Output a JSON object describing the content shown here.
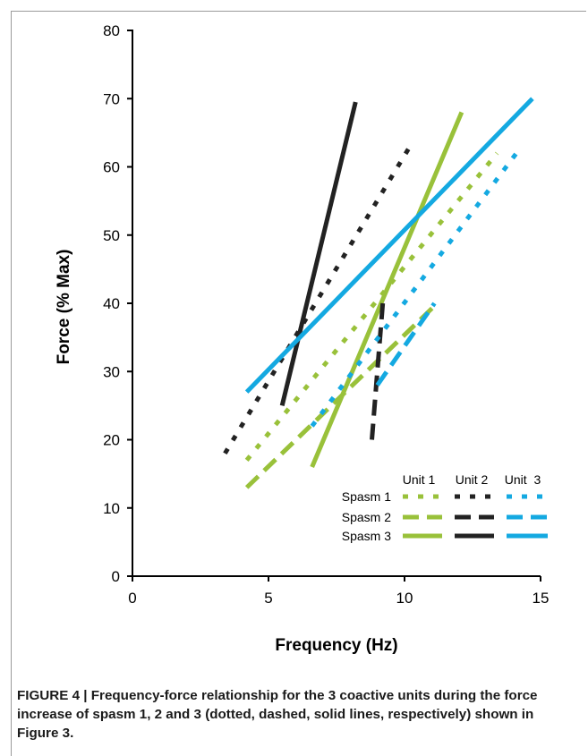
{
  "chart_data": {
    "type": "line",
    "xlabel": "Frequency (Hz)",
    "ylabel": "Force (% Max)",
    "xlim": [
      0,
      15
    ],
    "ylim": [
      0,
      80
    ],
    "xticks": [
      0,
      5,
      10,
      15
    ],
    "yticks": [
      0,
      10,
      20,
      30,
      40,
      50,
      60,
      70,
      80
    ],
    "grid": false,
    "legend": {
      "placement": "bottom-right",
      "column_headers": [
        "Unit 1",
        "Unit 2",
        "Unit  3"
      ],
      "row_labels": [
        "Spasm 1",
        "Spasm 2",
        "Spasm 3"
      ]
    },
    "series": [
      {
        "unit": "Unit 1",
        "spasm": "Spasm 1",
        "style": "dotted",
        "color": "#99c13a",
        "x": [
          4.2,
          13.4
        ],
        "y": [
          17.0,
          62.0
        ]
      },
      {
        "unit": "Unit 1",
        "spasm": "Spasm 2",
        "style": "dashed",
        "color": "#99c13a",
        "x": [
          4.2,
          11.2
        ],
        "y": [
          13.0,
          40.0
        ]
      },
      {
        "unit": "Unit 1",
        "spasm": "Spasm 3",
        "style": "solid",
        "color": "#99c13a",
        "x": [
          6.6,
          12.1
        ],
        "y": [
          16.0,
          68.0
        ]
      },
      {
        "unit": "Unit 2",
        "spasm": "Spasm 1",
        "style": "dotted",
        "color": "#222222",
        "x": [
          3.4,
          10.2
        ],
        "y": [
          18.0,
          63.0
        ]
      },
      {
        "unit": "Unit 2",
        "spasm": "Spasm 2",
        "style": "dashed",
        "color": "#222222",
        "x": [
          8.8,
          9.2
        ],
        "y": [
          20.0,
          40.0
        ]
      },
      {
        "unit": "Unit 2",
        "spasm": "Spasm 3",
        "style": "solid",
        "color": "#222222",
        "x": [
          5.5,
          8.2
        ],
        "y": [
          25.0,
          69.5
        ]
      },
      {
        "unit": "Unit 3",
        "spasm": "Spasm 1",
        "style": "dotted",
        "color": "#14a9e1",
        "x": [
          6.6,
          14.3
        ],
        "y": [
          22.0,
          63.0
        ]
      },
      {
        "unit": "Unit 3",
        "spasm": "Spasm 2",
        "style": "dashed",
        "color": "#14a9e1",
        "x": [
          9.0,
          11.1
        ],
        "y": [
          28.0,
          40.0
        ]
      },
      {
        "unit": "Unit 3",
        "spasm": "Spasm 3",
        "style": "solid",
        "color": "#14a9e1",
        "x": [
          4.2,
          14.7
        ],
        "y": [
          27.0,
          70.0
        ]
      }
    ]
  },
  "caption": {
    "label": "FIGURE 4",
    "separator": " | ",
    "text": "Frequency-force relationship for the 3 coactive units during the force increase of spasm 1, 2 and 3 (dotted, dashed, solid lines, respectively) shown in Figure 3."
  }
}
